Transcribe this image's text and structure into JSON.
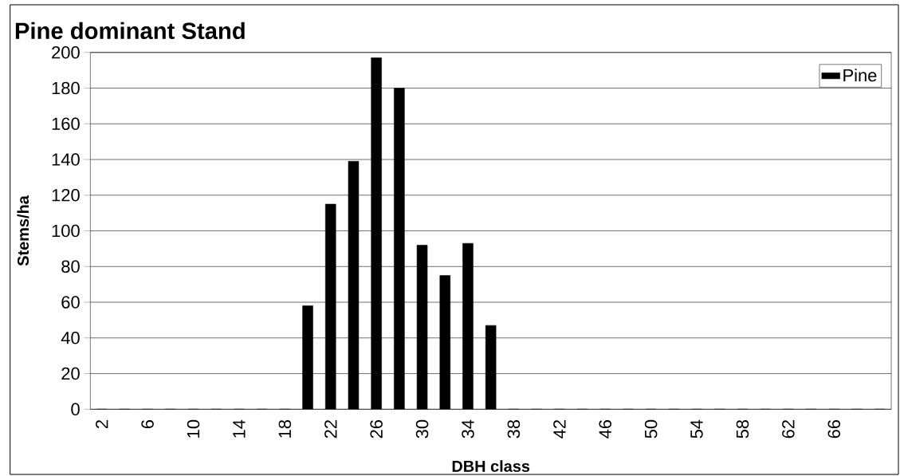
{
  "chart_data": {
    "type": "bar",
    "title": "Pine dominant Stand",
    "xlabel": "DBH class",
    "ylabel": "Stems/ha",
    "categories": [
      "2",
      null,
      "6",
      null,
      "10",
      null,
      "14",
      null,
      "18",
      null,
      "22",
      null,
      "26",
      null,
      "30",
      null,
      "34",
      null,
      "38",
      null,
      "42",
      null,
      "46",
      null,
      "50",
      null,
      "54",
      null,
      "58",
      null,
      "62",
      null,
      "66",
      null,
      null
    ],
    "series": [
      {
        "name": "Pine",
        "color": "#000000",
        "values": [
          0,
          0,
          0,
          0,
          0,
          0,
          0,
          0,
          0,
          58,
          115,
          139,
          197,
          180,
          92,
          75,
          93,
          47,
          0,
          0,
          0,
          0,
          0,
          0,
          0,
          0,
          0,
          0,
          0,
          0,
          0,
          0,
          0,
          0,
          0
        ]
      }
    ],
    "ylim": [
      0,
      200
    ],
    "yticks": [
      0,
      20,
      40,
      60,
      80,
      100,
      120,
      140,
      160,
      180,
      200
    ],
    "grid": "y",
    "legend": "top right"
  }
}
